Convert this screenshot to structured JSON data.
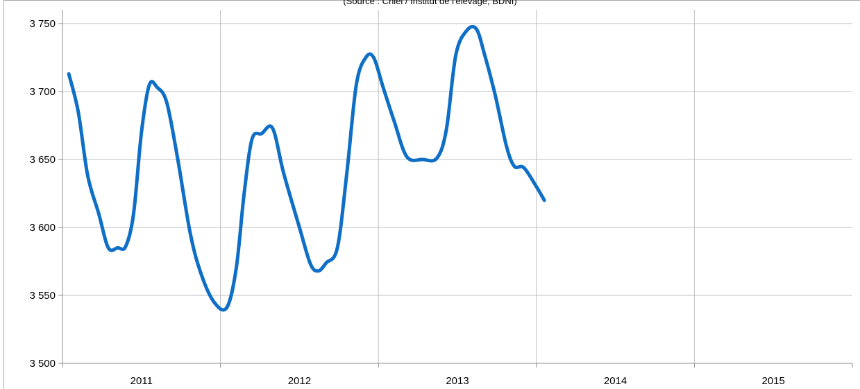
{
  "source_text": "(Source : Cniel / Institut de l'élevage, BDNI)",
  "chart_data": {
    "type": "line",
    "title": "",
    "xlabel": "",
    "ylabel": "",
    "categories": [
      "2011",
      "2012",
      "2013",
      "2014",
      "2015"
    ],
    "y_tick_labels": [
      "3 500",
      "3 550",
      "3 600",
      "3 650",
      "3 700",
      "3 750"
    ],
    "ylim": [
      3500,
      3760
    ],
    "xlim": [
      2010.5,
      2015.0
    ],
    "grid": true,
    "legend": "none",
    "series": [
      {
        "color": "#0f6fc6",
        "points": [
          [
            2010.54,
            3713
          ],
          [
            2010.6,
            3685
          ],
          [
            2010.66,
            3638
          ],
          [
            2010.73,
            3610
          ],
          [
            2010.79,
            3585
          ],
          [
            2010.85,
            3585
          ],
          [
            2010.9,
            3586
          ],
          [
            2010.95,
            3610
          ],
          [
            2011.0,
            3670
          ],
          [
            2011.05,
            3705
          ],
          [
            2011.1,
            3703
          ],
          [
            2011.16,
            3692
          ],
          [
            2011.23,
            3650
          ],
          [
            2011.31,
            3595
          ],
          [
            2011.38,
            3565
          ],
          [
            2011.46,
            3545
          ],
          [
            2011.54,
            3541
          ],
          [
            2011.6,
            3570
          ],
          [
            2011.65,
            3625
          ],
          [
            2011.7,
            3665
          ],
          [
            2011.76,
            3669
          ],
          [
            2011.83,
            3673
          ],
          [
            2011.9,
            3640
          ],
          [
            2012.0,
            3600
          ],
          [
            2012.07,
            3573
          ],
          [
            2012.12,
            3568
          ],
          [
            2012.17,
            3574
          ],
          [
            2012.24,
            3585
          ],
          [
            2012.3,
            3640
          ],
          [
            2012.36,
            3705
          ],
          [
            2012.42,
            3725
          ],
          [
            2012.47,
            3725
          ],
          [
            2012.53,
            3703
          ],
          [
            2012.6,
            3678
          ],
          [
            2012.68,
            3652
          ],
          [
            2012.78,
            3650
          ],
          [
            2012.87,
            3651
          ],
          [
            2012.93,
            3672
          ],
          [
            2012.99,
            3727
          ],
          [
            2013.06,
            3745
          ],
          [
            2013.12,
            3746
          ],
          [
            2013.17,
            3728
          ],
          [
            2013.24,
            3697
          ],
          [
            2013.31,
            3660
          ],
          [
            2013.36,
            3645
          ],
          [
            2013.42,
            3644
          ],
          [
            2013.5,
            3630
          ],
          [
            2013.55,
            3620
          ]
        ]
      }
    ]
  }
}
